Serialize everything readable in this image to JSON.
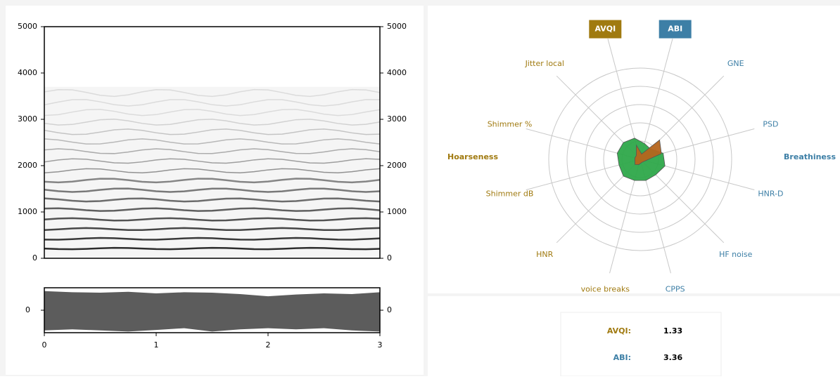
{
  "chart_data": [
    {
      "type": "spectrogram",
      "xlim": [
        0,
        3
      ],
      "xticks": [
        0,
        1,
        2,
        3
      ],
      "ylim": [
        0,
        5000
      ],
      "yticks": [
        0,
        1000,
        2000,
        3000,
        4000,
        5000
      ],
      "harmonics": [
        210,
        420,
        630,
        840,
        1050,
        1260,
        1470,
        1680,
        1890,
        2100,
        2310,
        2520,
        2730,
        2940,
        3150,
        3360,
        3570
      ],
      "color": "#222222"
    },
    {
      "type": "waveform",
      "xlim": [
        0,
        3
      ],
      "xticks": [
        0,
        1,
        2,
        3
      ],
      "ylim": [
        -1,
        1
      ],
      "yticks": [
        0
      ],
      "x": [
        0,
        0.25,
        0.5,
        0.75,
        1,
        1.25,
        1.5,
        1.75,
        2,
        2.25,
        2.5,
        2.75,
        3
      ],
      "upper": [
        0.85,
        0.8,
        0.78,
        0.82,
        0.75,
        0.8,
        0.78,
        0.72,
        0.62,
        0.7,
        0.75,
        0.72,
        0.8
      ],
      "lower": [
        -0.9,
        -0.85,
        -0.9,
        -0.95,
        -0.88,
        -0.8,
        -0.95,
        -0.85,
        -0.8,
        -0.85,
        -0.8,
        -0.9,
        -0.95
      ],
      "color": "#5c5c5c"
    },
    {
      "type": "radar",
      "axes": [
        "ABI",
        "GNE",
        "PSD",
        "HNR-D",
        "HF noise",
        "CPPS",
        "voice breaks",
        "HNR",
        "Shimmer dB",
        "Shimmer %",
        "Jitter local",
        "AVQI"
      ],
      "axis_colors": [
        "#3d7fa6",
        "#3d7fa6",
        "#3d7fa6",
        "#3d7fa6",
        "#3d7fa6",
        "#3d7fa6",
        "#a07a10",
        "#a07a10",
        "#a07a10",
        "#a07a10",
        "#a07a10",
        "#a07a10"
      ],
      "boxed_axes": [
        "ABI",
        "AVQI"
      ],
      "rlim": [
        0,
        5
      ],
      "rticks": [
        1,
        2,
        3,
        4,
        5
      ],
      "group_labels": [
        {
          "text": "Hoarseness",
          "color": "#a07a10"
        },
        {
          "text": "Breathiness",
          "color": "#3d7fa6"
        }
      ],
      "series": [
        {
          "color": "#2ea84a",
          "values": [
            0.9,
            0.8,
            1.3,
            1.4,
            1.2,
            1.2,
            1.2,
            1.3,
            1.2,
            1.3,
            1.3,
            1.2
          ]
        },
        {
          "color": "#b5651d",
          "values": [
            0.3,
            1.5,
            1.2,
            0.3,
            0.2,
            0.2,
            0.3,
            0.4,
            0.3,
            0.3,
            0.3,
            0.8
          ]
        }
      ]
    }
  ],
  "scores": [
    {
      "label": "AVQI:",
      "value": "1.33",
      "color": "#a07a10"
    },
    {
      "label": "ABI:",
      "value": "3.36",
      "color": "#3d7fa6"
    }
  ]
}
